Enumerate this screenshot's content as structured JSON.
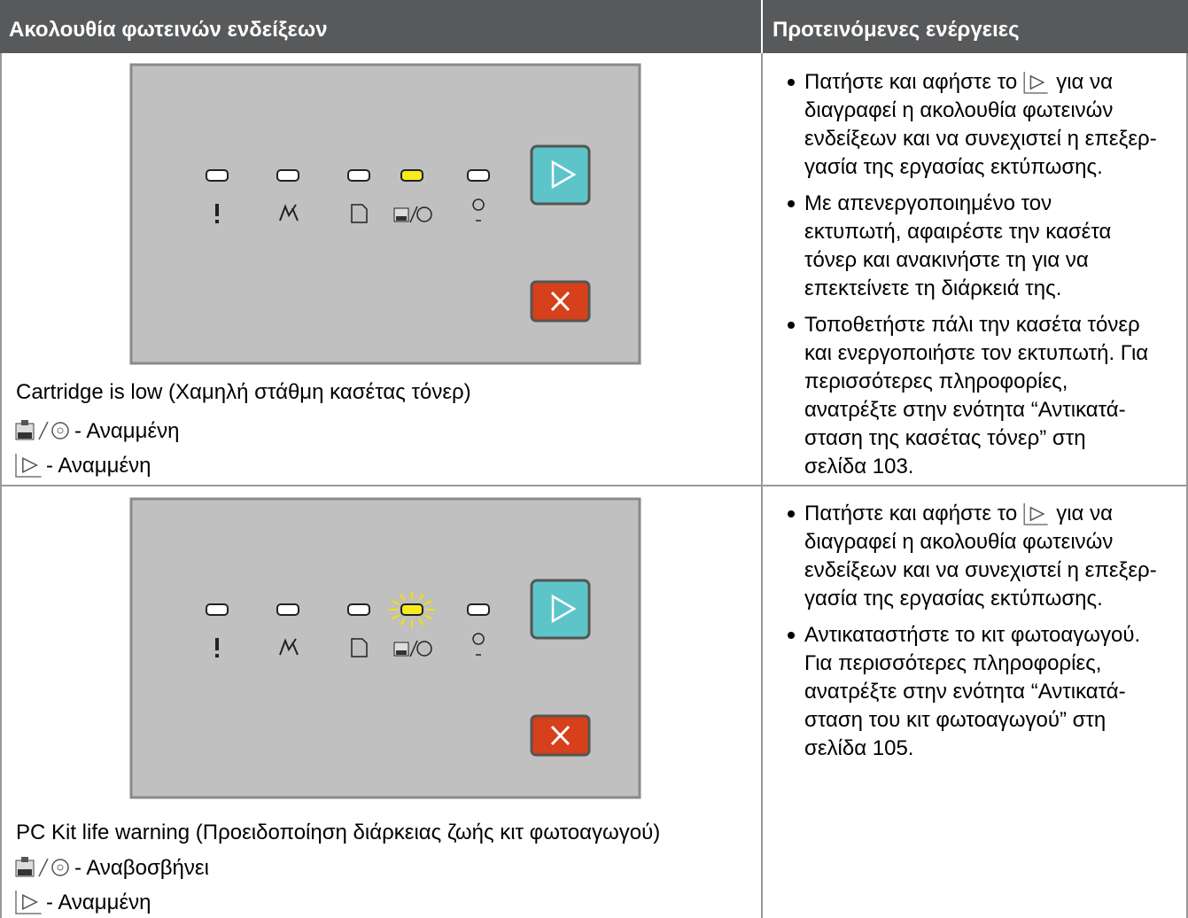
{
  "table": {
    "headers": [
      "Ακολουθία φωτεινών ενδείξεων",
      "Προτεινόμενες ενέργειες"
    ],
    "rows": [
      {
        "caption": "Cartridge is low (Χαμηλή στάθμη κασέτας τόνερ)",
        "states": [
          "- Αναμμένη",
          "- Αναμμένη"
        ],
        "actions": [
          {
            "lead": "Πατήστε και αφήστε το",
            "tail": "για να",
            "lines": [
              "διαγραφεί η ακολουθία φωτεινών",
              "ενδείξεων και να συνεχιστεί η επεξερ-",
              "γασία της εργασίας εκτύπωσης."
            ]
          },
          {
            "lines": [
              "Με απενεργοποιημένο τον",
              "εκτυπωτή, αφαιρέστε την κασέτα",
              "τόνερ και ανακινήστε τη για να",
              "επεκτείνετε τη διάρκειά της."
            ]
          },
          {
            "lines": [
              "Τοποθετήστε πάλι την κασέτα τόνερ",
              "και ενεργοποιήστε τον εκτυπωτή. Για",
              "περισσότερες πληροφορίες,",
              "ανατρέξτε στην ενότητα “Αντικατά-",
              "σταση της κασέτας τόνερ” στη",
              "σελίδα 103."
            ]
          }
        ]
      },
      {
        "caption": "PC Kit life warning (Προειδοποίηση διάρκειας ζωής κιτ φωτοαγωγού)",
        "states": [
          "- Αναβοσβήνει",
          "- Αναμμένη"
        ],
        "actions": [
          {
            "lead": "Πατήστε και αφήστε το",
            "tail": "για να",
            "lines": [
              "διαγραφεί η ακολουθία φωτεινών",
              "ενδείξεων και να συνεχιστεί η επεξερ-",
              "γασία της εργασίας εκτύπωσης."
            ]
          },
          {
            "lines": [
              "Αντικαταστήστε το κιτ φωτοαγωγού.",
              "Για περισσότερες πληροφορίες,",
              "ανατρέξτε στην ενότητα “Αντικατά-",
              "σταση του κιτ φωτοαγωγού” στη",
              "σελίδα 105."
            ]
          }
        ]
      }
    ]
  }
}
